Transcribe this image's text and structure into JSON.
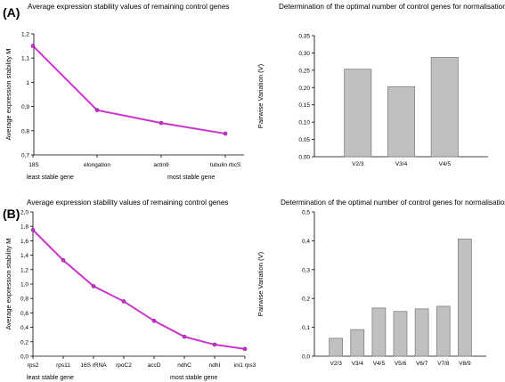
{
  "figure": {
    "panel_labels": [
      "(A)",
      "(B)"
    ],
    "colors": {
      "line": "#cc33cc",
      "bar_fill": "#c0c0c0",
      "bar_stroke": "#808080"
    }
  },
  "chart_data": [
    {
      "type": "line",
      "title": "Average expression stability values of remaining control genes",
      "ylabel": "Average expression stability M",
      "x": [
        "18S",
        "elongation",
        "actin9",
        "tubulin rbcS"
      ],
      "y": [
        1.15,
        0.885,
        0.832,
        0.788
      ],
      "ylim": [
        0.7,
        1.2
      ],
      "yticks": [
        "0,7",
        "0,8",
        "0,9",
        "1",
        "1,1",
        "1,2"
      ],
      "bottom_left_label": "least stable gene",
      "bottom_right_label": "most stable gene",
      "grid": false
    },
    {
      "type": "bar",
      "title": "Determination of the optimal number of control genes for normalisation",
      "ylabel": "Pairwise Variation (V)",
      "categories": [
        "V2/3",
        "V3/4",
        "V4/5"
      ],
      "values": [
        0.253,
        0.202,
        0.287
      ],
      "ylim": [
        0,
        0.35
      ],
      "yticks": [
        "0,00",
        "0,05",
        "0,10",
        "0,15",
        "0,20",
        "0,25",
        "0,30",
        "0,35"
      ],
      "grid": false
    },
    {
      "type": "line",
      "title": "Average expression stability values of remaining control genes",
      "ylabel": "Average expression stability M",
      "x": [
        "rps2",
        "rps11",
        "16S rRNA",
        "rpoC2",
        "accD",
        "ndhC",
        "ndhI",
        "ini1 rps3"
      ],
      "y": [
        1.75,
        1.33,
        0.97,
        0.76,
        0.49,
        0.27,
        0.16,
        0.1
      ],
      "ylim": [
        0,
        2.0
      ],
      "yticks": [
        "0,0",
        "0,2",
        "0,4",
        "0,6",
        "0,8",
        "1,0",
        "1,2",
        "1,4",
        "1,6",
        "1,8",
        "2,0"
      ],
      "bottom_left_label": "least stable gene",
      "bottom_right_label": "most stable gene",
      "grid": false
    },
    {
      "type": "bar",
      "title": "Determination of the optimal number of control genes for normalisation",
      "ylabel": "Pairwise Variation (V)",
      "categories": [
        "V2/3",
        "V3/4",
        "V4/5",
        "V5/6",
        "V6/7",
        "V7/8",
        "V8/9"
      ],
      "values": [
        0.062,
        0.092,
        0.167,
        0.155,
        0.164,
        0.173,
        0.406
      ],
      "ylim": [
        0,
        0.5
      ],
      "yticks": [
        "0,0",
        "0,1",
        "0,2",
        "0,3",
        "0,4",
        "0,5"
      ],
      "grid": false
    }
  ]
}
